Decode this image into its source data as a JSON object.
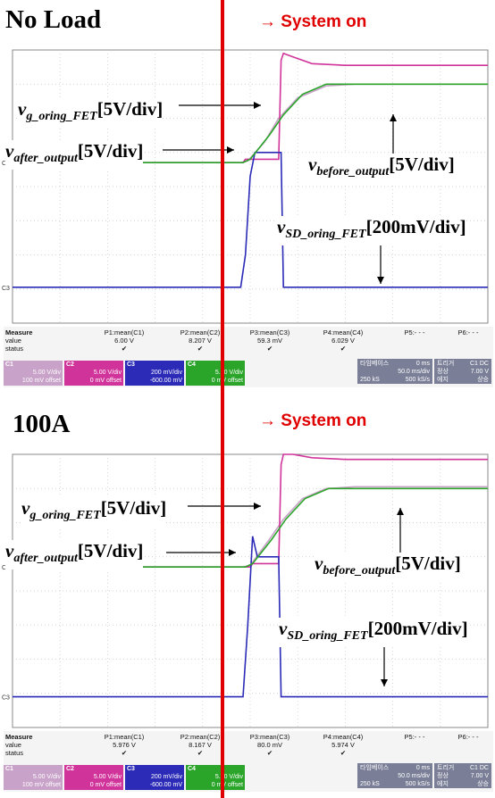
{
  "panels": [
    {
      "title": "No Load",
      "system_on": "→ System on",
      "annotations": {
        "vg": {
          "main": "v",
          "sub": "g_oring_FET",
          "scale": "[5V/div]"
        },
        "vafter": {
          "main": "v",
          "sub": "after_output",
          "scale": "[5V/div]"
        },
        "vbefore": {
          "main": "v",
          "sub": "before_output",
          "scale": "[5V/div]"
        },
        "vsd": {
          "main": "v",
          "sub": "SD_oring_FET",
          "scale": "[200mV/div]"
        }
      },
      "measure": {
        "header": "Measure",
        "row_value": "value",
        "row_status": "status",
        "params": [
          {
            "name": "P1:mean(C1)",
            "value": "6.00 V",
            "status": "✔"
          },
          {
            "name": "P2:mean(C2)",
            "value": "8.207 V",
            "status": "✔"
          },
          {
            "name": "P3:mean(C3)",
            "value": "59.3 mV",
            "status": "✔"
          },
          {
            "name": "P4:mean(C4)",
            "value": "6.029 V",
            "status": "✔"
          },
          {
            "name": "P5:- - -",
            "value": "",
            "status": ""
          },
          {
            "name": "P6:- - -",
            "value": "",
            "status": ""
          }
        ],
        "channels": [
          {
            "label": "C1",
            "vdiv": "5.00 V/div",
            "offset": "100 mV offset",
            "color": "#c8a2c8"
          },
          {
            "label": "C2",
            "vdiv": "5.00 V/div",
            "offset": "0 mV offset",
            "color": "#d0339a"
          },
          {
            "label": "C3",
            "vdiv": "200 mV/div",
            "offset": "-600.00 mV",
            "color": "#2b2bb8"
          },
          {
            "label": "C4",
            "vdiv": "5.00 V/div",
            "offset": "0 mV offset",
            "color": "#2aa52a"
          }
        ],
        "timebase": {
          "label": "타임베이스",
          "delay": "0 ms",
          "tdiv": "50.0 ms/div",
          "samples": "250 kS",
          "rate": "500 kS/s"
        },
        "trigger": {
          "label": "트리거",
          "src": "C1 DC",
          "mode": "정상",
          "level": "7.00 V",
          "edge_label": "에지",
          "slope": "상승"
        }
      }
    },
    {
      "title": "100A",
      "system_on": "→ System on",
      "annotations": {
        "vg": {
          "main": "v",
          "sub": "g_oring_FET",
          "scale": "[5V/div]"
        },
        "vafter": {
          "main": "v",
          "sub": "after_output",
          "scale": "[5V/div]"
        },
        "vbefore": {
          "main": "v",
          "sub": "before_output",
          "scale": "[5V/div]"
        },
        "vsd": {
          "main": "v",
          "sub": "SD_oring_FET",
          "scale": "[200mV/div]"
        }
      },
      "measure": {
        "header": "Measure",
        "row_value": "value",
        "row_status": "status",
        "params": [
          {
            "name": "P1:mean(C1)",
            "value": "5.976 V",
            "status": "✔"
          },
          {
            "name": "P2:mean(C2)",
            "value": "8.167 V",
            "status": "✔"
          },
          {
            "name": "P3:mean(C3)",
            "value": "80.0 mV",
            "status": "✔"
          },
          {
            "name": "P4:mean(C4)",
            "value": "5.974 V",
            "status": "✔"
          },
          {
            "name": "P5:- - -",
            "value": "",
            "status": ""
          },
          {
            "name": "P6:- - -",
            "value": "",
            "status": ""
          }
        ],
        "channels": [
          {
            "label": "C1",
            "vdiv": "5.00 V/div",
            "offset": "100 mV offset",
            "color": "#c8a2c8"
          },
          {
            "label": "C2",
            "vdiv": "5.00 V/div",
            "offset": "0 mV offset",
            "color": "#d0339a"
          },
          {
            "label": "C3",
            "vdiv": "200 mV/div",
            "offset": "-600.00 mV",
            "color": "#2b2bb8"
          },
          {
            "label": "C4",
            "vdiv": "5.00 V/div",
            "offset": "0 mV offset",
            "color": "#2aa52a"
          }
        ],
        "timebase": {
          "label": "타임베이스",
          "delay": "0 ms",
          "tdiv": "50.0 ms/div",
          "samples": "250 kS",
          "rate": "500 kS/s"
        },
        "trigger": {
          "label": "트리거",
          "src": "C1 DC",
          "mode": "정상",
          "level": "7.00 V",
          "edge_label": "에지",
          "slope": "상승"
        }
      }
    }
  ],
  "chart_data": [
    {
      "type": "line",
      "x_unit": "div",
      "xlim": [
        0,
        10
      ],
      "ylim": [
        0,
        8
      ],
      "grid": true,
      "series": [
        {
          "name": "C1",
          "color": "#c8a2c8",
          "x": [
            0,
            4.8,
            4.95,
            5.3,
            5.6,
            6.0,
            6.6,
            7.2,
            10
          ],
          "y": [
            4.7,
            4.7,
            4.75,
            5.3,
            6.0,
            6.6,
            6.95,
            7.0,
            7.0
          ]
        },
        {
          "name": "C2",
          "color": "#d0339a",
          "x": [
            0,
            4.85,
            4.9,
            5.0,
            5.6,
            5.65,
            5.7,
            5.9,
            6.3,
            7.0,
            10
          ],
          "y": [
            4.7,
            4.7,
            4.8,
            4.8,
            4.8,
            7.7,
            7.9,
            7.8,
            7.6,
            7.55,
            7.55
          ]
        },
        {
          "name": "C3",
          "color": "#2b2bb8",
          "x": [
            0,
            4.8,
            4.9,
            5.0,
            5.1,
            5.55,
            5.65,
            5.7,
            10
          ],
          "y": [
            1.05,
            1.05,
            2.0,
            4.3,
            5.0,
            5.0,
            5.0,
            1.05,
            1.05
          ]
        },
        {
          "name": "C4",
          "color": "#2aa52a",
          "x": [
            0,
            4.85,
            5.0,
            5.4,
            5.7,
            6.1,
            6.6,
            7.2,
            10
          ],
          "y": [
            4.7,
            4.7,
            4.8,
            5.5,
            6.1,
            6.7,
            7.0,
            7.0,
            7.0
          ]
        }
      ]
    },
    {
      "type": "line",
      "x_unit": "div",
      "xlim": [
        0,
        10
      ],
      "ylim": [
        0,
        8
      ],
      "grid": true,
      "series": [
        {
          "name": "C1",
          "color": "#c8a2c8",
          "x": [
            0,
            4.85,
            5.0,
            5.4,
            5.7,
            6.1,
            6.6,
            7.2,
            10
          ],
          "y": [
            4.7,
            4.7,
            4.75,
            5.5,
            6.1,
            6.7,
            7.0,
            7.05,
            7.05
          ]
        },
        {
          "name": "C2",
          "color": "#d0339a",
          "x": [
            0,
            5.0,
            5.05,
            5.6,
            5.65,
            5.7,
            5.9,
            6.3,
            7.0,
            10
          ],
          "y": [
            4.7,
            4.7,
            4.8,
            4.8,
            7.7,
            8.0,
            8.0,
            7.9,
            7.85,
            7.85
          ]
        },
        {
          "name": "C3",
          "color": "#2b2bb8",
          "x": [
            0,
            4.85,
            4.95,
            5.05,
            5.15,
            5.5,
            5.6,
            5.65,
            10
          ],
          "y": [
            0.9,
            0.9,
            3.0,
            5.6,
            5.0,
            5.0,
            5.0,
            0.9,
            0.9
          ]
        },
        {
          "name": "C4",
          "color": "#2aa52a",
          "x": [
            0,
            4.9,
            5.05,
            5.45,
            5.75,
            6.15,
            6.65,
            7.2,
            10
          ],
          "y": [
            4.7,
            4.7,
            4.8,
            5.5,
            6.1,
            6.7,
            7.0,
            7.0,
            7.0
          ]
        }
      ]
    }
  ]
}
